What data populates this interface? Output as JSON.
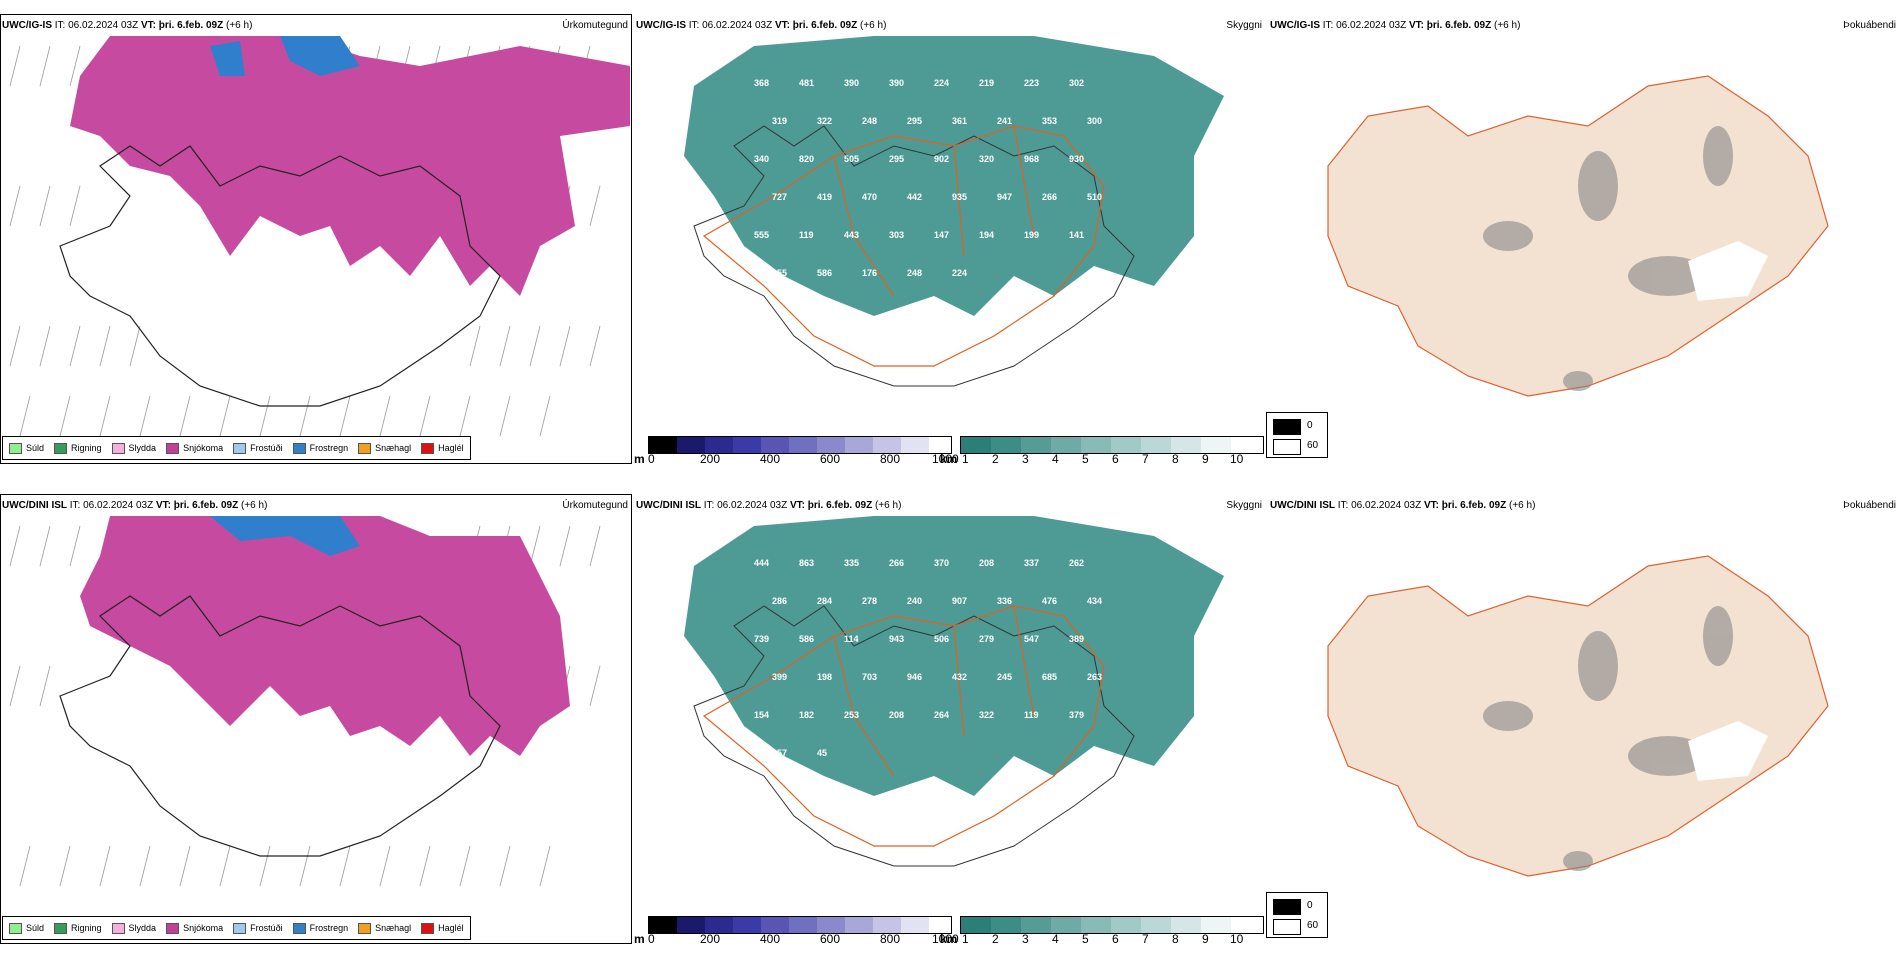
{
  "top": {
    "panel1": {
      "model": "UWC/IG-IS",
      "it_label": "IT:",
      "it": "06.02.2024 03Z",
      "vt_label": "VT:",
      "vt": "þri. 6.feb. 09Z",
      "lead": "(+6 h)",
      "kind": "Úrkomutegund"
    },
    "panel2": {
      "model": "UWC/IG-IS",
      "it_label": "IT:",
      "it": "06.02.2024 03Z",
      "vt_label": "VT:",
      "vt": "þri. 6.feb. 09Z",
      "lead": "(+6 h)",
      "kind": "Skyggni",
      "labels": [
        "368",
        "481",
        "390",
        "390",
        "224",
        "219",
        "223",
        "302",
        "319",
        "322",
        "248",
        "295",
        "361",
        "241",
        "353",
        "300",
        "340",
        "820",
        "505",
        "295",
        "902",
        "320",
        "968",
        "930",
        "727",
        "419",
        "470",
        "442",
        "935",
        "947",
        "266",
        "510",
        "555",
        "119",
        "443",
        "303",
        "147",
        "194",
        "199",
        "141",
        "255",
        "586",
        "176",
        "248",
        "224"
      ]
    },
    "panel3": {
      "model": "UWC/IG-IS",
      "it_label": "IT:",
      "it": "06.02.2024 03Z",
      "vt_label": "VT:",
      "vt": "þri. 6.feb. 09Z",
      "lead": "(+6 h)",
      "kind": "Þokuábendi"
    }
  },
  "bottom": {
    "panel1": {
      "model": "UWC/DINI ISL",
      "it_label": "IT:",
      "it": "06.02.2024 03Z",
      "vt_label": "VT:",
      "vt": "þri. 6.feb. 09Z",
      "lead": "(+6 h)",
      "kind": "Úrkomutegund"
    },
    "panel2": {
      "model": "UWC/DINI ISL",
      "it_label": "IT:",
      "it": "06.02.2024 03Z",
      "vt_label": "VT:",
      "vt": "þri. 6.feb. 09Z",
      "lead": "(+6 h)",
      "kind": "Skyggni",
      "labels": [
        "444",
        "863",
        "335",
        "266",
        "370",
        "208",
        "337",
        "262",
        "286",
        "284",
        "278",
        "240",
        "907",
        "336",
        "476",
        "434",
        "739",
        "586",
        "114",
        "943",
        "506",
        "279",
        "547",
        "389",
        "399",
        "198",
        "703",
        "946",
        "432",
        "245",
        "685",
        "263",
        "154",
        "182",
        "253",
        "208",
        "264",
        "322",
        "119",
        "379",
        "157",
        "45"
      ]
    },
    "panel3": {
      "model": "UWC/DINI ISL",
      "it_label": "IT:",
      "it": "06.02.2024 03Z",
      "vt_label": "VT:",
      "vt": "þri. 6.feb. 09Z",
      "lead": "(+6 h)",
      "kind": "Þokuábendi"
    }
  },
  "legend_precip": [
    {
      "label": "Súld",
      "color": "#90ee90"
    },
    {
      "label": "Rigning",
      "color": "#3a9a5a"
    },
    {
      "label": "Slydda",
      "color": "#f4b0d8"
    },
    {
      "label": "Snjókoma",
      "color": "#c0409a"
    },
    {
      "label": "Frostúði",
      "color": "#9ecaf0"
    },
    {
      "label": "Frostregn",
      "color": "#2f80c8"
    },
    {
      "label": "Snæhagl",
      "color": "#f0a020"
    },
    {
      "label": "Haglél",
      "color": "#e01010"
    }
  ],
  "elev_scale": {
    "unit": "m",
    "ticks": [
      "0",
      "200",
      "400",
      "600",
      "800",
      "1000"
    ]
  },
  "vis_scale": {
    "unit": "km",
    "ticks": [
      "1",
      "2",
      "3",
      "4",
      "5",
      "6",
      "7",
      "8",
      "9",
      "10"
    ]
  },
  "fog_scale": {
    "ticks": [
      "0",
      "60"
    ]
  },
  "colors": {
    "snow": "#c64ba0",
    "frz_rain": "#2f7fcc",
    "vis": "#2f8a82",
    "land": "#f3e2d2",
    "roads": "#e06020"
  }
}
